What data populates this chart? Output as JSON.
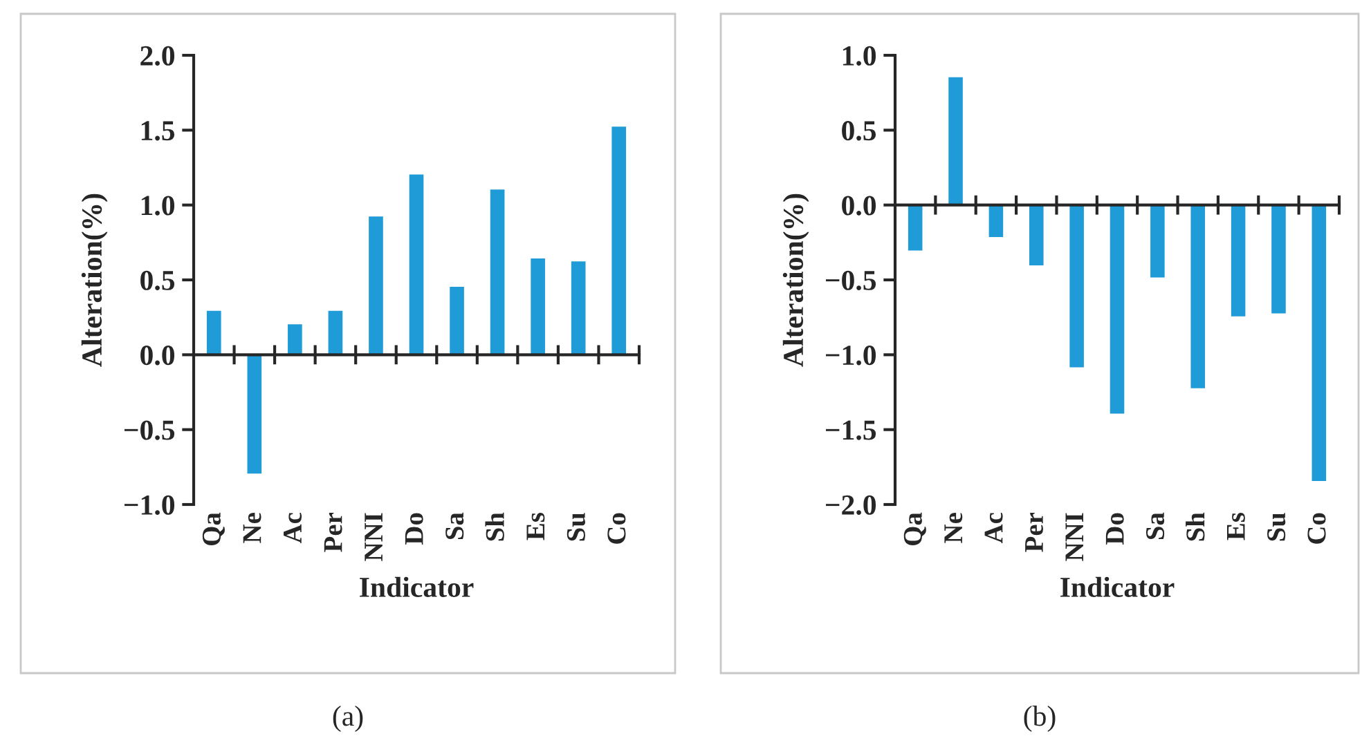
{
  "chart_data": [
    {
      "type": "bar",
      "xlabel": "Indicator",
      "ylabel": "Alteration(%)",
      "categories": [
        "Qa",
        "Ne",
        "Ac",
        "Per",
        "NNI",
        "Do",
        "Sa",
        "Sh",
        "Es",
        "Su",
        "Co"
      ],
      "values": [
        0.3,
        -0.8,
        0.21,
        0.3,
        0.93,
        1.21,
        0.46,
        1.11,
        0.65,
        0.63,
        1.53
      ],
      "color": "#1f9bd7",
      "ylim": [
        -1.0,
        2.0
      ],
      "yticks": [
        {
          "value": -1.0,
          "label": "−1.0"
        },
        {
          "value": -0.5,
          "label": "−0.5"
        },
        {
          "value": 0.0,
          "label": "0.0"
        },
        {
          "value": 0.5,
          "label": "0.5"
        },
        {
          "value": 1.0,
          "label": "1.0"
        },
        {
          "value": 1.5,
          "label": "1.5"
        },
        {
          "value": 2.0,
          "label": "2.0"
        }
      ],
      "annotations": [
        "(a)"
      ]
    },
    {
      "type": "bar",
      "xlabel": "Indicator",
      "ylabel": "Alteration(%)",
      "categories": [
        "Qa",
        "Ne",
        "Ac",
        "Per",
        "NNI",
        "Do",
        "Sa",
        "Sh",
        "Es",
        "Su",
        "Co"
      ],
      "values": [
        -0.31,
        0.86,
        -0.22,
        -0.41,
        -1.09,
        -1.4,
        -0.49,
        -1.23,
        -0.75,
        -0.73,
        -1.85
      ],
      "color": "#1f9bd7",
      "ylim": [
        -2.0,
        1.0
      ],
      "yticks": [
        {
          "value": -2.0,
          "label": "−2.0"
        },
        {
          "value": -1.5,
          "label": "−1.5"
        },
        {
          "value": -1.0,
          "label": "−1.0"
        },
        {
          "value": -0.5,
          "label": "−0.5"
        },
        {
          "value": 0.0,
          "label": "0.0"
        },
        {
          "value": 0.5,
          "label": "0.5"
        },
        {
          "value": 1.0,
          "label": "1.0"
        }
      ],
      "annotations": [
        "(b)"
      ]
    }
  ]
}
